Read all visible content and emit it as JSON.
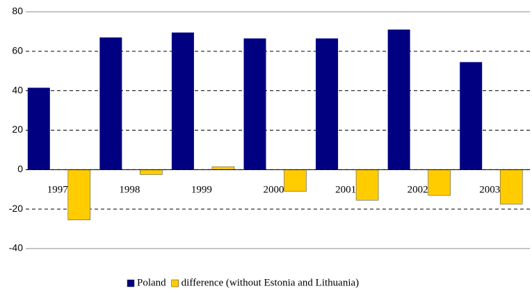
{
  "chart_data": {
    "type": "bar",
    "categories": [
      "1997",
      "1998",
      "1999",
      "2000",
      "2001",
      "2002",
      "2003"
    ],
    "series": [
      {
        "name": "Poland",
        "color": "#000080",
        "values": [
          41.5,
          67,
          69.5,
          66.5,
          66.5,
          71,
          54.5
        ]
      },
      {
        "name": "difference (without Estonia and Lithuania)",
        "color": "#ffcc00",
        "values": [
          -25.5,
          -2.5,
          1.5,
          -11,
          -15.5,
          -13,
          -17.5
        ]
      }
    ],
    "ylim": [
      -40,
      80
    ],
    "yticks": [
      -40,
      -20,
      0,
      20,
      40,
      60,
      80
    ],
    "grid": true,
    "legend": "bottom"
  }
}
